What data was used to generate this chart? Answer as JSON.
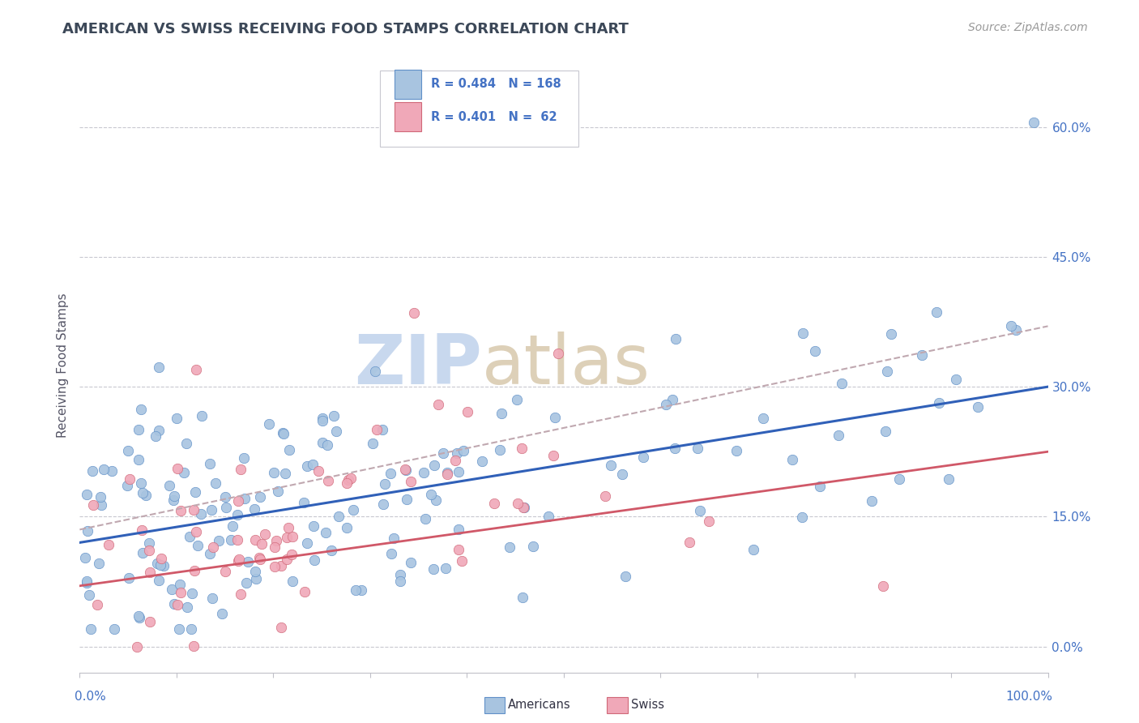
{
  "title": "AMERICAN VS SWISS RECEIVING FOOD STAMPS CORRELATION CHART",
  "source": "Source: ZipAtlas.com",
  "ylabel": "Receiving Food Stamps",
  "ytick_labels": [
    "0.0%",
    "15.0%",
    "30.0%",
    "45.0%",
    "60.0%"
  ],
  "ytick_values": [
    0.0,
    0.15,
    0.3,
    0.45,
    0.6
  ],
  "xlim": [
    0.0,
    1.0
  ],
  "ylim": [
    -0.03,
    0.68
  ],
  "legend_r_american": "R = 0.484",
  "legend_n_american": "N = 168",
  "legend_r_swiss": "R = 0.401",
  "legend_n_swiss": "N =  62",
  "color_american_fill": "#a8c4e0",
  "color_american_edge": "#6090c8",
  "color_swiss_fill": "#f0a8b8",
  "color_swiss_edge": "#d06878",
  "color_american_line": "#3060b8",
  "color_swiss_line": "#d05868",
  "color_dashed_line": "#c0a8b0",
  "background_color": "#ffffff",
  "grid_color": "#c8c8d0",
  "title_color": "#3c4858",
  "axis_label_color": "#4472c4",
  "watermark_zip_color": "#c8d8ee",
  "watermark_atlas_color": "#ddd0b8",
  "am_line_start_y": 0.12,
  "am_line_end_y": 0.3,
  "sw_line_start_y": 0.07,
  "sw_line_end_y": 0.225,
  "dash_line_start_y": 0.135,
  "dash_line_end_y": 0.37
}
